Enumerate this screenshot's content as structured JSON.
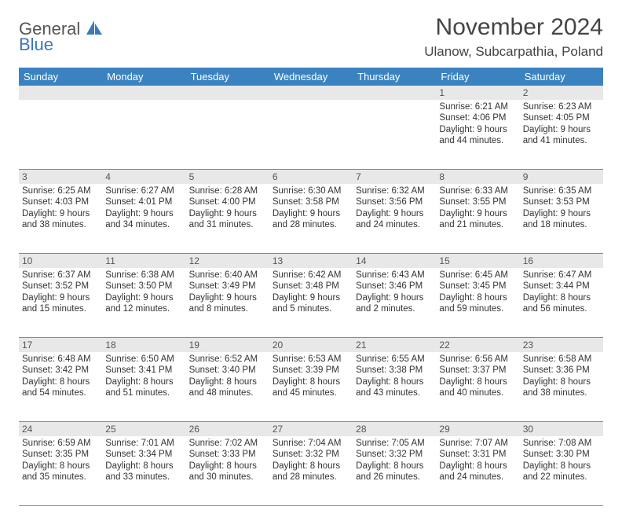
{
  "logo": {
    "line1": "General",
    "line2": "Blue"
  },
  "title": "November 2024",
  "location": "Ulanow, Subcarpathia, Poland",
  "colors": {
    "header_bg": "#3b83c0",
    "header_text": "#ffffff",
    "daynum_bg": "#e8e8e8",
    "border": "#888888",
    "body_text": "#333333",
    "title_text": "#444444",
    "logo_gray": "#555555",
    "logo_blue": "#3b78b5"
  },
  "typography": {
    "title_fontsize": 30,
    "location_fontsize": 17,
    "dayhead_fontsize": 13,
    "cell_fontsize": 11.5
  },
  "day_headers": [
    "Sunday",
    "Monday",
    "Tuesday",
    "Wednesday",
    "Thursday",
    "Friday",
    "Saturday"
  ],
  "weeks": [
    [
      {
        "n": "",
        "sr": "",
        "ss": "",
        "d1": "",
        "d2": ""
      },
      {
        "n": "",
        "sr": "",
        "ss": "",
        "d1": "",
        "d2": ""
      },
      {
        "n": "",
        "sr": "",
        "ss": "",
        "d1": "",
        "d2": ""
      },
      {
        "n": "",
        "sr": "",
        "ss": "",
        "d1": "",
        "d2": ""
      },
      {
        "n": "",
        "sr": "",
        "ss": "",
        "d1": "",
        "d2": ""
      },
      {
        "n": "1",
        "sr": "Sunrise: 6:21 AM",
        "ss": "Sunset: 4:06 PM",
        "d1": "Daylight: 9 hours",
        "d2": "and 44 minutes."
      },
      {
        "n": "2",
        "sr": "Sunrise: 6:23 AM",
        "ss": "Sunset: 4:05 PM",
        "d1": "Daylight: 9 hours",
        "d2": "and 41 minutes."
      }
    ],
    [
      {
        "n": "3",
        "sr": "Sunrise: 6:25 AM",
        "ss": "Sunset: 4:03 PM",
        "d1": "Daylight: 9 hours",
        "d2": "and 38 minutes."
      },
      {
        "n": "4",
        "sr": "Sunrise: 6:27 AM",
        "ss": "Sunset: 4:01 PM",
        "d1": "Daylight: 9 hours",
        "d2": "and 34 minutes."
      },
      {
        "n": "5",
        "sr": "Sunrise: 6:28 AM",
        "ss": "Sunset: 4:00 PM",
        "d1": "Daylight: 9 hours",
        "d2": "and 31 minutes."
      },
      {
        "n": "6",
        "sr": "Sunrise: 6:30 AM",
        "ss": "Sunset: 3:58 PM",
        "d1": "Daylight: 9 hours",
        "d2": "and 28 minutes."
      },
      {
        "n": "7",
        "sr": "Sunrise: 6:32 AM",
        "ss": "Sunset: 3:56 PM",
        "d1": "Daylight: 9 hours",
        "d2": "and 24 minutes."
      },
      {
        "n": "8",
        "sr": "Sunrise: 6:33 AM",
        "ss": "Sunset: 3:55 PM",
        "d1": "Daylight: 9 hours",
        "d2": "and 21 minutes."
      },
      {
        "n": "9",
        "sr": "Sunrise: 6:35 AM",
        "ss": "Sunset: 3:53 PM",
        "d1": "Daylight: 9 hours",
        "d2": "and 18 minutes."
      }
    ],
    [
      {
        "n": "10",
        "sr": "Sunrise: 6:37 AM",
        "ss": "Sunset: 3:52 PM",
        "d1": "Daylight: 9 hours",
        "d2": "and 15 minutes."
      },
      {
        "n": "11",
        "sr": "Sunrise: 6:38 AM",
        "ss": "Sunset: 3:50 PM",
        "d1": "Daylight: 9 hours",
        "d2": "and 12 minutes."
      },
      {
        "n": "12",
        "sr": "Sunrise: 6:40 AM",
        "ss": "Sunset: 3:49 PM",
        "d1": "Daylight: 9 hours",
        "d2": "and 8 minutes."
      },
      {
        "n": "13",
        "sr": "Sunrise: 6:42 AM",
        "ss": "Sunset: 3:48 PM",
        "d1": "Daylight: 9 hours",
        "d2": "and 5 minutes."
      },
      {
        "n": "14",
        "sr": "Sunrise: 6:43 AM",
        "ss": "Sunset: 3:46 PM",
        "d1": "Daylight: 9 hours",
        "d2": "and 2 minutes."
      },
      {
        "n": "15",
        "sr": "Sunrise: 6:45 AM",
        "ss": "Sunset: 3:45 PM",
        "d1": "Daylight: 8 hours",
        "d2": "and 59 minutes."
      },
      {
        "n": "16",
        "sr": "Sunrise: 6:47 AM",
        "ss": "Sunset: 3:44 PM",
        "d1": "Daylight: 8 hours",
        "d2": "and 56 minutes."
      }
    ],
    [
      {
        "n": "17",
        "sr": "Sunrise: 6:48 AM",
        "ss": "Sunset: 3:42 PM",
        "d1": "Daylight: 8 hours",
        "d2": "and 54 minutes."
      },
      {
        "n": "18",
        "sr": "Sunrise: 6:50 AM",
        "ss": "Sunset: 3:41 PM",
        "d1": "Daylight: 8 hours",
        "d2": "and 51 minutes."
      },
      {
        "n": "19",
        "sr": "Sunrise: 6:52 AM",
        "ss": "Sunset: 3:40 PM",
        "d1": "Daylight: 8 hours",
        "d2": "and 48 minutes."
      },
      {
        "n": "20",
        "sr": "Sunrise: 6:53 AM",
        "ss": "Sunset: 3:39 PM",
        "d1": "Daylight: 8 hours",
        "d2": "and 45 minutes."
      },
      {
        "n": "21",
        "sr": "Sunrise: 6:55 AM",
        "ss": "Sunset: 3:38 PM",
        "d1": "Daylight: 8 hours",
        "d2": "and 43 minutes."
      },
      {
        "n": "22",
        "sr": "Sunrise: 6:56 AM",
        "ss": "Sunset: 3:37 PM",
        "d1": "Daylight: 8 hours",
        "d2": "and 40 minutes."
      },
      {
        "n": "23",
        "sr": "Sunrise: 6:58 AM",
        "ss": "Sunset: 3:36 PM",
        "d1": "Daylight: 8 hours",
        "d2": "and 38 minutes."
      }
    ],
    [
      {
        "n": "24",
        "sr": "Sunrise: 6:59 AM",
        "ss": "Sunset: 3:35 PM",
        "d1": "Daylight: 8 hours",
        "d2": "and 35 minutes."
      },
      {
        "n": "25",
        "sr": "Sunrise: 7:01 AM",
        "ss": "Sunset: 3:34 PM",
        "d1": "Daylight: 8 hours",
        "d2": "and 33 minutes."
      },
      {
        "n": "26",
        "sr": "Sunrise: 7:02 AM",
        "ss": "Sunset: 3:33 PM",
        "d1": "Daylight: 8 hours",
        "d2": "and 30 minutes."
      },
      {
        "n": "27",
        "sr": "Sunrise: 7:04 AM",
        "ss": "Sunset: 3:32 PM",
        "d1": "Daylight: 8 hours",
        "d2": "and 28 minutes."
      },
      {
        "n": "28",
        "sr": "Sunrise: 7:05 AM",
        "ss": "Sunset: 3:32 PM",
        "d1": "Daylight: 8 hours",
        "d2": "and 26 minutes."
      },
      {
        "n": "29",
        "sr": "Sunrise: 7:07 AM",
        "ss": "Sunset: 3:31 PM",
        "d1": "Daylight: 8 hours",
        "d2": "and 24 minutes."
      },
      {
        "n": "30",
        "sr": "Sunrise: 7:08 AM",
        "ss": "Sunset: 3:30 PM",
        "d1": "Daylight: 8 hours",
        "d2": "and 22 minutes."
      }
    ]
  ]
}
